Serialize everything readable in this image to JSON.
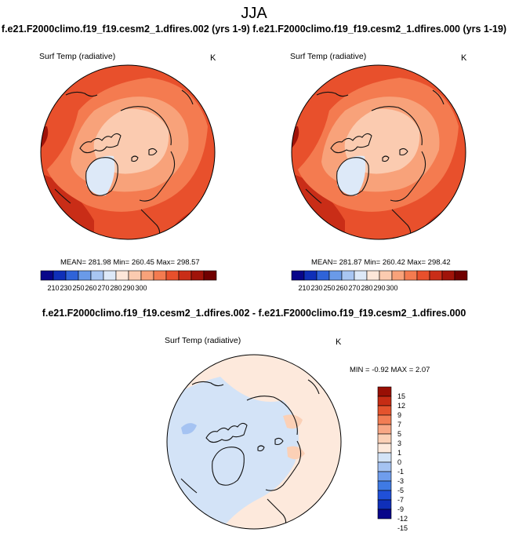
{
  "figure": {
    "title": "JJA",
    "case_line": "f.e21.F2000climo.f19_f19.cesm2_1.dfires.002 (yrs 1-9) f.e21.F2000climo.f19_f19.cesm2_1.dfires.000 (yrs 1-19)",
    "diff_title": "f.e21.F2000climo.f19_f19.cesm2_1.dfires.002 - f.e21.F2000climo.f19_f19.cesm2_1.dfires.000"
  },
  "colors": {
    "abs_scale": [
      "#08068a",
      "#0f2fb8",
      "#2f63d8",
      "#6a9ae8",
      "#a8c6f2",
      "#dde9f8",
      "#fde7d9",
      "#fbcbb0",
      "#f8a27a",
      "#f47b50",
      "#e8502c",
      "#c92d17",
      "#a01309",
      "#700000"
    ],
    "diff_scale": [
      "#08068a",
      "#0f2fb8",
      "#2050d8",
      "#3f7ae4",
      "#6f9ded",
      "#a5c3f2",
      "#d3e3f7",
      "#fde9dc",
      "#fbd0b6",
      "#f8a785",
      "#f27d54",
      "#e4532d",
      "#c62c14",
      "#990f04"
    ],
    "coast": "#111111"
  },
  "chart_data": [
    {
      "type": "polar-map",
      "panel": "left",
      "variable": "Surf Temp (radiative)",
      "units": "K",
      "stats": {
        "mean": "281.98",
        "min": "260.45",
        "max": "298.57"
      },
      "stats_text": "MEAN= 281.98  Min= 260.45  Max= 298.57",
      "colorbar_ticks": [
        "210",
        "230",
        "250",
        "260",
        "270",
        "280",
        "290",
        "300"
      ]
    },
    {
      "type": "polar-map",
      "panel": "right",
      "variable": "Surf Temp (radiative)",
      "units": "K",
      "stats": {
        "mean": "281.87",
        "min": "260.42",
        "max": "298.42"
      },
      "stats_text": "MEAN= 281.87  Min= 260.42  Max= 298.42",
      "colorbar_ticks": [
        "210",
        "230",
        "250",
        "260",
        "270",
        "280",
        "290",
        "300"
      ]
    },
    {
      "type": "polar-map",
      "panel": "difference",
      "variable": "Surf Temp (radiative)",
      "units": "K",
      "stats": {
        "min": "-0.92",
        "max": "2.07"
      },
      "stats_text": "MIN =  -0.92 MAX =  2.07",
      "colorbar_ticks": [
        "15",
        "12",
        "9",
        "7",
        "5",
        "3",
        "1",
        "0",
        "-1",
        "-3",
        "-5",
        "-7",
        "-9",
        "-12",
        "-15"
      ]
    }
  ]
}
